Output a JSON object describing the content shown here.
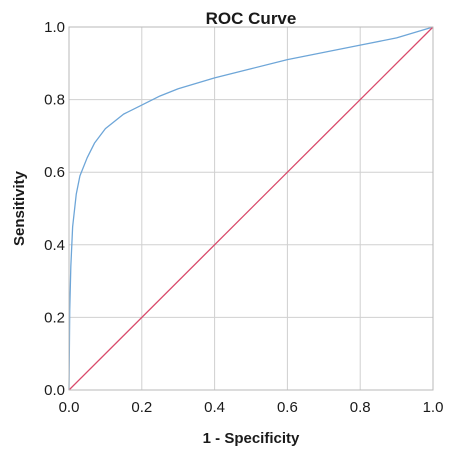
{
  "chart_data": {
    "type": "line",
    "title": "ROC Curve",
    "xlabel": "1 - Specificity",
    "ylabel": "Sensitivity",
    "xlim": [
      0.0,
      1.0
    ],
    "ylim": [
      0.0,
      1.0
    ],
    "x_ticks": [
      "0.0",
      "0.2",
      "0.4",
      "0.6",
      "0.8",
      "1.0"
    ],
    "y_ticks": [
      "0.0",
      "0.2",
      "0.4",
      "0.6",
      "0.8",
      "1.0"
    ],
    "grid": true,
    "legend": "none",
    "series": [
      {
        "color": "#6ea6d8",
        "x": [
          0.0,
          0.002,
          0.005,
          0.01,
          0.02,
          0.03,
          0.05,
          0.07,
          0.1,
          0.15,
          0.2,
          0.25,
          0.3,
          0.4,
          0.5,
          0.6,
          0.7,
          0.8,
          0.9,
          1.0
        ],
        "y": [
          0.0,
          0.22,
          0.34,
          0.45,
          0.54,
          0.59,
          0.64,
          0.68,
          0.72,
          0.76,
          0.785,
          0.81,
          0.83,
          0.86,
          0.885,
          0.91,
          0.93,
          0.95,
          0.97,
          1.0
        ]
      },
      {
        "color": "#d94a6b",
        "x": [
          0.0,
          1.0
        ],
        "y": [
          0.0,
          1.0
        ]
      }
    ]
  }
}
